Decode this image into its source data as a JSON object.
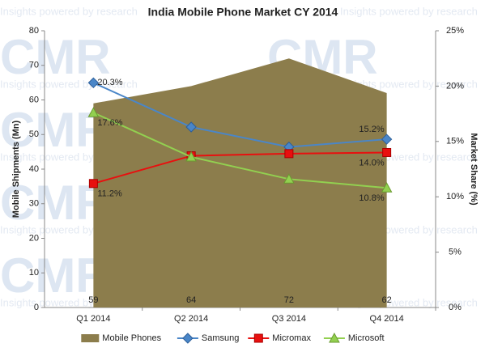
{
  "chart_data": {
    "type": "area-line",
    "title": "India Mobile Phone Market CY 2014",
    "watermark": [
      "CMR",
      "Insights powered by research"
    ],
    "y_label": "Mobile Shipments (Mn)",
    "y2_label": "Market Share (%)",
    "categories": [
      "Q1 2014",
      "Q2 2014",
      "Q3 2014",
      "Q4 2014"
    ],
    "ylim": [
      0,
      80
    ],
    "yticks": [
      0,
      10,
      20,
      30,
      40,
      50,
      60,
      70,
      80
    ],
    "y2lim": [
      0,
      25
    ],
    "y2ticks": [
      {
        "value": 0,
        "label": "0%"
      },
      {
        "value": 5,
        "label": "5%"
      },
      {
        "value": 10,
        "label": "10%"
      },
      {
        "value": 15,
        "label": "15%"
      },
      {
        "value": 20,
        "label": "20%"
      },
      {
        "value": 25,
        "label": "25%"
      }
    ],
    "grid": false,
    "legend": "bottom",
    "series": [
      {
        "name": "Mobile Phones",
        "kind": "area",
        "color": "#8c7d4c",
        "values": [
          59,
          64,
          72,
          62
        ]
      },
      {
        "name": "Samsung",
        "kind": "line",
        "marker": "diamond",
        "axis": "y2",
        "color": "#4a86c8",
        "values": [
          20.3,
          16.3,
          14.5,
          15.2
        ],
        "value_labels": [
          "20.3%",
          null,
          null,
          "15.2%"
        ]
      },
      {
        "name": "Micromax",
        "kind": "line",
        "marker": "square",
        "axis": "y2",
        "color": "#e8100f",
        "values": [
          11.2,
          13.7,
          13.9,
          14.0
        ],
        "value_labels": [
          "11.2%",
          null,
          null,
          "14.0%"
        ]
      },
      {
        "name": "Microsoft",
        "kind": "line",
        "marker": "triangle",
        "axis": "y2",
        "color": "#92d050",
        "values": [
          17.6,
          13.6,
          11.6,
          10.8
        ],
        "value_labels": [
          "17.6%",
          null,
          null,
          "10.8%"
        ]
      }
    ]
  }
}
